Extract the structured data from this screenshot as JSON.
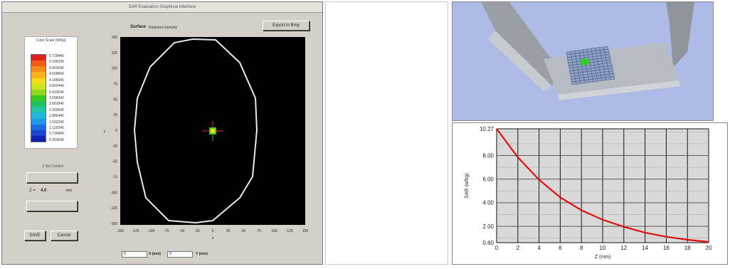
{
  "dialog": {
    "title": "SAR Evaluation Graphical Interface",
    "color_scale": {
      "title": "Color Scale (W/kg)",
      "colors": [
        "#e02020",
        "#f05a1a",
        "#f58a1e",
        "#f7b21c",
        "#f1dc1c",
        "#cfe41e",
        "#8fd81e",
        "#38c81e",
        "#20c060",
        "#20c8a8",
        "#20b8d8",
        "#2098e8",
        "#1a6ce0",
        "#1846d0",
        "#1020b0"
      ],
      "values": [
        "5.718446",
        "5.335246",
        "4.952046",
        "4.568846",
        "4.185646",
        "3.802446",
        "3.419246",
        "3.036046",
        "2.652846",
        "2.269646",
        "1.886446",
        "1.503246",
        "1.120046",
        "0.736846",
        "0.353646"
      ]
    },
    "z_section": {
      "label": "Z Sel Control",
      "up_label": "",
      "down_label": "",
      "z_prefix": "Z =",
      "z_value": "4.0",
      "z_unit": "mm"
    },
    "save_label": "SAVE",
    "cancel_label": "Cancel",
    "surface_label": "Surface",
    "radiated_label": "Radiated Intensity",
    "export_label": "Export to Bmp",
    "plot": {
      "x_ticks": [
        "-150",
        "-125",
        "-100",
        "-75",
        "-50",
        "-25",
        "0",
        "25",
        "50",
        "75",
        "100",
        "125",
        "150"
      ],
      "y_ticks": [
        "150",
        "125",
        "100",
        "75",
        "50",
        "25",
        "0",
        "-25",
        "-50",
        "-75",
        "-100",
        "-125",
        "-150"
      ],
      "x_axis_label": "x",
      "y_axis_label": "y"
    },
    "coords": {
      "x_value": "0",
      "x_label": "X (mm)",
      "y_value": "0",
      "y_label": "Y (mm)"
    }
  },
  "view3d": {
    "bg_color": "#aebbe6"
  },
  "chart_data": {
    "type": "line",
    "x": [
      0,
      2,
      4,
      6,
      8,
      10,
      12,
      14,
      16,
      18,
      20
    ],
    "series": [
      {
        "values": [
          10.27,
          7.85,
          5.95,
          4.45,
          3.35,
          2.55,
          1.95,
          1.45,
          1.1,
          0.85,
          0.66
        ],
        "color": "#e01010"
      }
    ],
    "xlabel": "Z (mm)",
    "ylabel": "SAR (w/kg)",
    "xlim": [
      0,
      20
    ],
    "ylim": [
      0.6,
      10.27
    ],
    "x_ticks": [
      "0",
      "2",
      "4",
      "6",
      "8",
      "10",
      "12",
      "14",
      "16",
      "18",
      "20"
    ],
    "y_ticks": [
      {
        "label": "10.27",
        "value": 10.27
      },
      {
        "label": "8.00",
        "value": 8.0
      },
      {
        "label": "6.00",
        "value": 6.0
      },
      {
        "label": "4.00",
        "value": 4.0
      },
      {
        "label": "2.00",
        "value": 2.0
      },
      {
        "label": "0.60",
        "value": 0.6
      }
    ],
    "grid": true
  }
}
